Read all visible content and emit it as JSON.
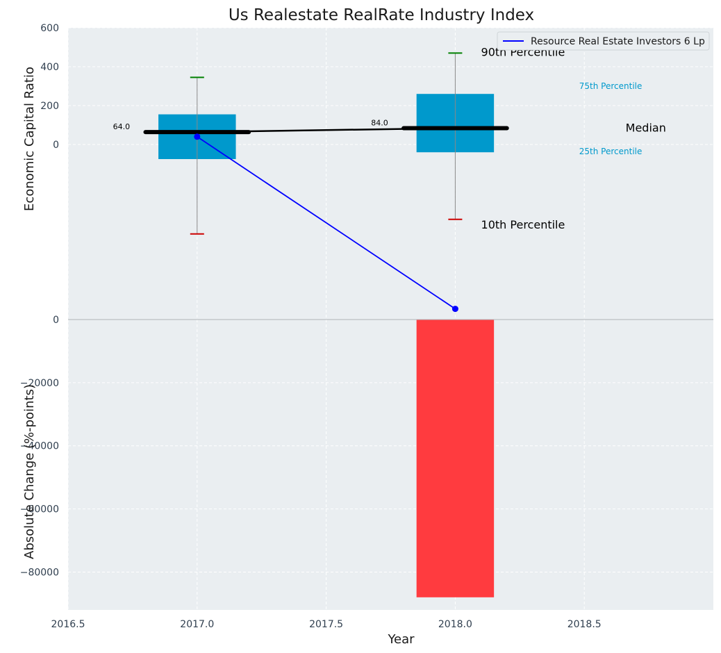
{
  "chart_data": [
    {
      "type": "box",
      "title": "Us Realestate RealRate Industry Index",
      "xlabel": "",
      "ylabel": "Economic Capital Ratio",
      "xlim": [
        2016.5,
        2019.0
      ],
      "ylim": [
        -900,
        600
      ],
      "y_ticks": [
        0,
        200,
        400,
        600
      ],
      "y_tick_labels": [
        "0",
        "200",
        "400",
        "600"
      ],
      "grid": true,
      "legend_position": "top-right",
      "boxes": [
        {
          "x": 2017.0,
          "p10": -460,
          "p25": -75,
          "median": 64.0,
          "p75": 155,
          "p90": 345,
          "median_label": "64.0"
        },
        {
          "x": 2018.0,
          "p10": -385,
          "p25": -40,
          "median": 84.0,
          "p75": 260,
          "p90": 470,
          "median_label": "84.0"
        }
      ],
      "median_line": {
        "x": [
          2017.0,
          2018.0
        ],
        "y": [
          64.0,
          84.0
        ]
      },
      "series": [
        {
          "name": "Resource Real Estate Investors 6 Lp",
          "x": [
            2017.0,
            2018.0
          ],
          "y": [
            40,
            -845
          ],
          "color": "#0000ff"
        }
      ],
      "annotations": {
        "p90": "90th Percentile",
        "p75": "75th Percentile",
        "median": "Median",
        "p25": "25th Percentile",
        "p10": "10th Percentile"
      }
    },
    {
      "type": "bar",
      "xlabel": "Year",
      "ylabel": "Absolute Change (%-points)",
      "xlim": [
        2016.5,
        2019.0
      ],
      "ylim": [
        -92000,
        0
      ],
      "x_ticks": [
        2016.5,
        2017.0,
        2017.5,
        2018.0,
        2018.5
      ],
      "x_tick_labels": [
        "2016.5",
        "2017.0",
        "2017.5",
        "2018.0",
        "2018.5"
      ],
      "y_ticks": [
        0,
        -20000,
        -40000,
        -60000,
        -80000
      ],
      "y_tick_labels": [
        "0",
        "−20000",
        "−40000",
        "−60000",
        "−80000"
      ],
      "grid": true,
      "categories": [
        2018.0
      ],
      "values": [
        -88000
      ],
      "bar_color": "#ff3b3f"
    }
  ],
  "colors": {
    "background": "#eaeef1",
    "grid": "#ffffff",
    "box": "#0099cc",
    "median": "#000000",
    "whisker": "#888888",
    "p90_cap": "#008000",
    "p10_cap": "#cc0000",
    "series": "#0000ff",
    "bar": "#ff3b3f",
    "tick_text": "#2f3e4e"
  }
}
